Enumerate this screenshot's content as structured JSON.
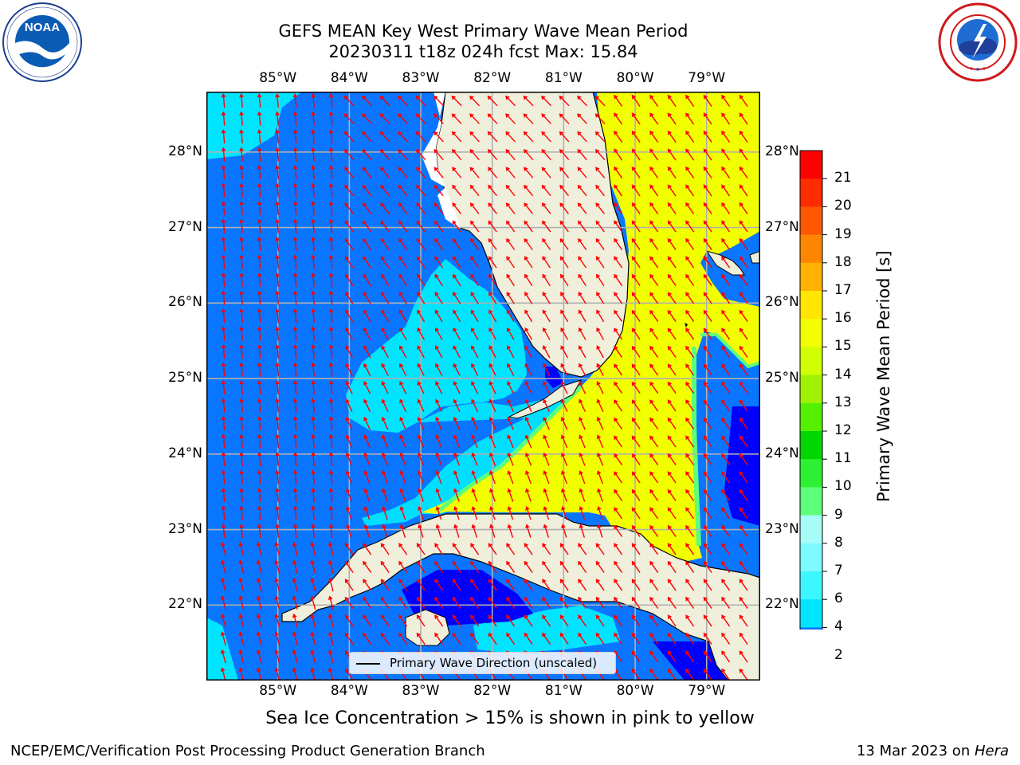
{
  "title": {
    "line1": "GEFS MEAN Key West Primary Wave Mean Period",
    "line2": "20230311 t18z 024h fcst   Max: 15.84"
  },
  "logos": {
    "left": {
      "name": "NOAA",
      "text": "NOAA",
      "ring_text": "NATIONAL OCEANIC AND ATMOSPHERIC ADMINISTRATION · U.S. DEPARTMENT OF COMMERCE"
    },
    "right": {
      "name": "National Weather Service",
      "ring_text": "NATIONAL WEATHER SERVICE"
    }
  },
  "map": {
    "lon_labels": [
      "85°W",
      "84°W",
      "83°W",
      "82°W",
      "81°W",
      "80°W",
      "79°W"
    ],
    "lat_labels": [
      "28°N",
      "27°N",
      "26°N",
      "25°N",
      "24°N",
      "23°N",
      "22°N"
    ],
    "lon_values": [
      -85,
      -84,
      -83,
      -82,
      -81,
      -80,
      -79
    ],
    "lat_values": [
      28,
      27,
      26,
      25,
      24,
      23,
      22
    ],
    "lon_range": [
      -86.0,
      -78.25
    ],
    "lat_range": [
      21.0,
      28.8
    ],
    "gridlines": true,
    "land_color": "#efefdc",
    "vector_color": "#ff0000",
    "legend_label": "Primary Wave Direction (unscaled)"
  },
  "colorbar": {
    "title": "Primary Wave Mean Period [s]",
    "ticks": [
      "2",
      "4",
      "6",
      "7",
      "8",
      "9",
      "10",
      "11",
      "12",
      "13",
      "14",
      "15",
      "16",
      "17",
      "18",
      "19",
      "20",
      "21"
    ],
    "colors": [
      "#0a76ff",
      "#00e5ff",
      "#3cf7ff",
      "#7dfbff",
      "#a8fcf8",
      "#5dff7b",
      "#2ef033",
      "#00d700",
      "#55f000",
      "#9ff300",
      "#cfff00",
      "#f2ff00",
      "#ffe600",
      "#ffb300",
      "#ff8600",
      "#ff5800",
      "#ff2c00",
      "#ff0000"
    ],
    "extend_color": "#0000ff"
  },
  "note": "Sea Ice Concentration > 15% is shown in pink to yellow",
  "footer": {
    "left": "NCEP/EMC/Verification Post Processing Product Generation Branch",
    "right_prefix": "13 Mar 2023 on ",
    "right_italic": "Hera"
  }
}
